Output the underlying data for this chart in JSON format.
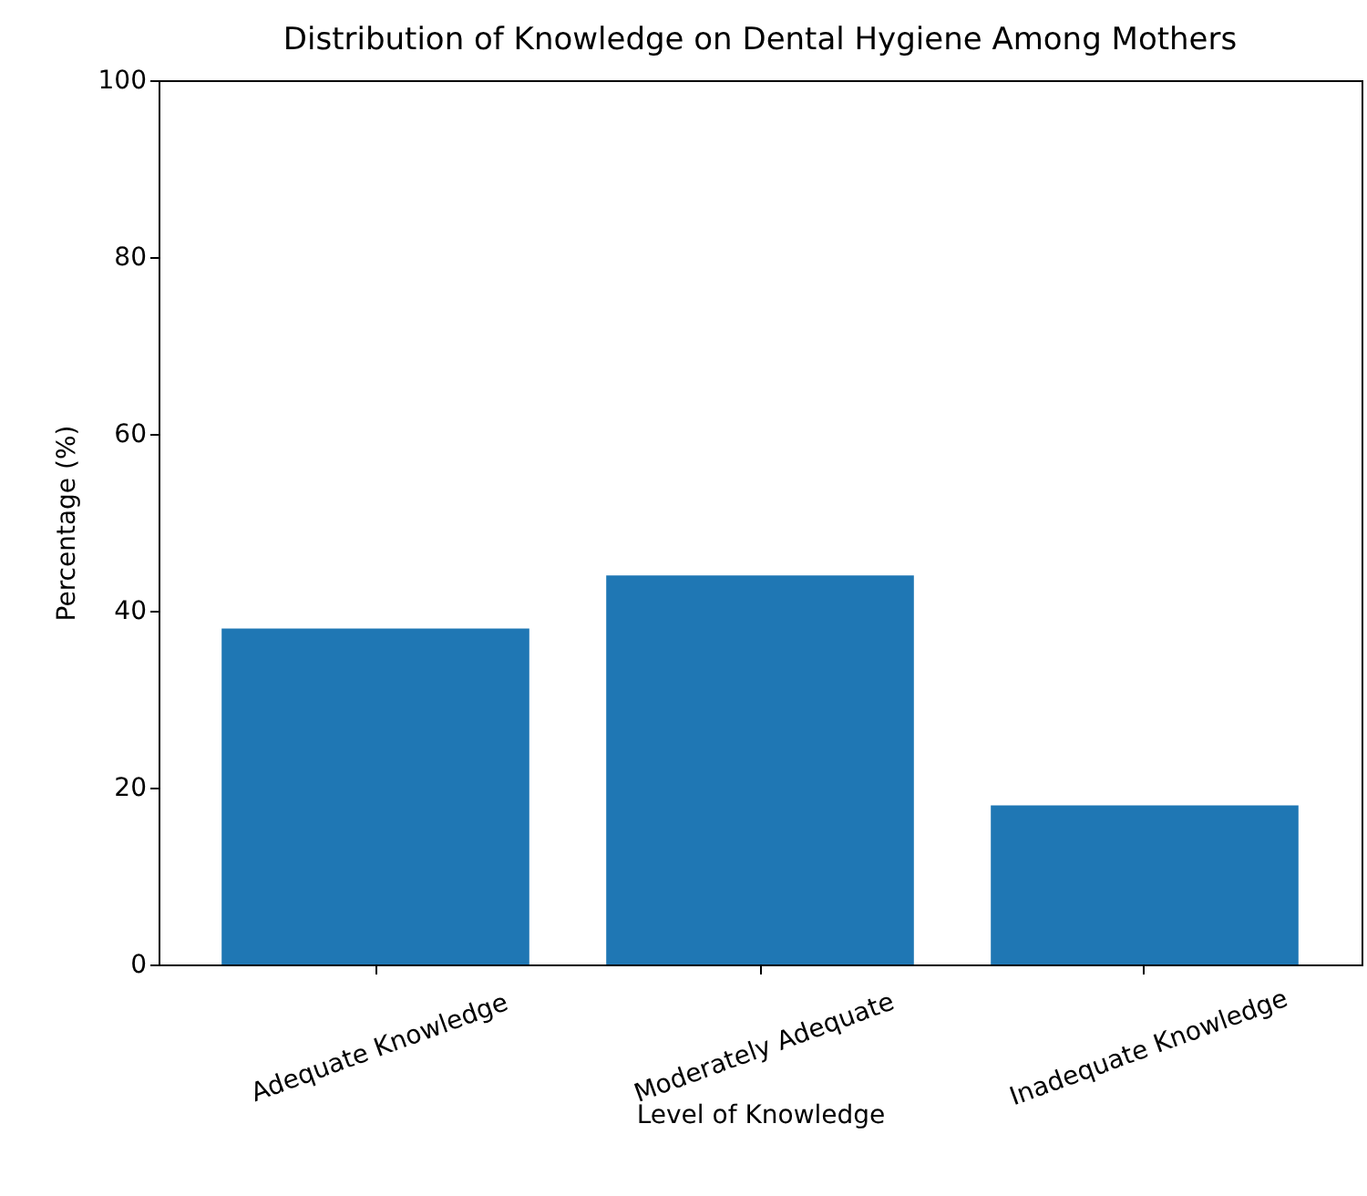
{
  "chart_data": {
    "type": "bar",
    "title": "Distribution of Knowledge on Dental Hygiene Among Mothers",
    "xlabel": "Level of Knowledge",
    "ylabel": "Percentage (%)",
    "categories": [
      "Adequate Knowledge",
      "Moderately Adequate",
      "Inadequate Knowledge"
    ],
    "values": [
      38,
      44,
      18
    ],
    "color": "#1f77b4",
    "ylim": [
      0,
      100
    ],
    "yticks": [
      0,
      20,
      40,
      60,
      80,
      100
    ],
    "grid": false
  }
}
